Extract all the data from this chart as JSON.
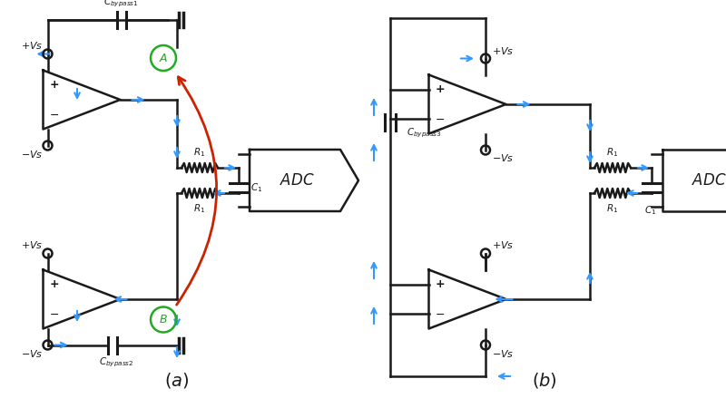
{
  "bg_color": "#ffffff",
  "line_color": "#1a1a1a",
  "arrow_color": "#3399ff",
  "red_arrow_color": "#cc2200",
  "green_circle_color": "#22aa22"
}
